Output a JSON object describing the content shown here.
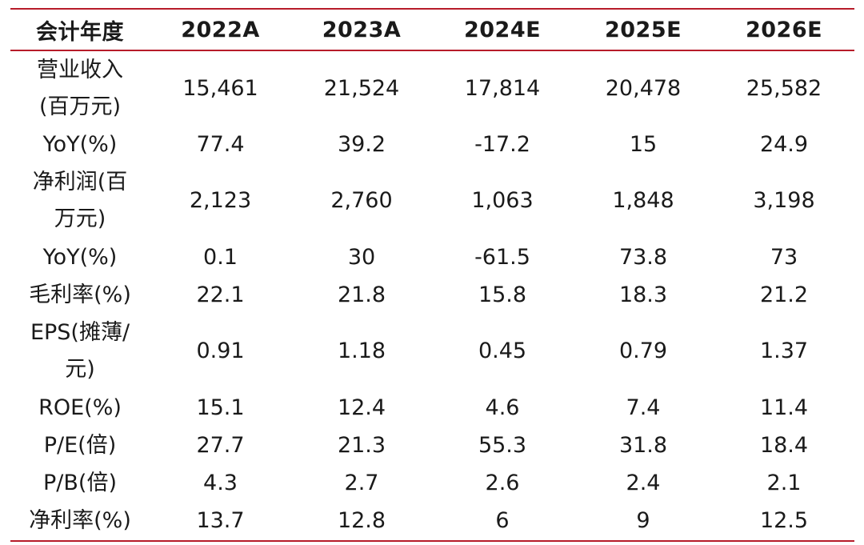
{
  "table": {
    "headers": [
      "会计年度",
      "2022A",
      "2023A",
      "2024E",
      "2025E",
      "2026E"
    ],
    "rows": [
      {
        "label": "营业收入(百万元)",
        "values": [
          "15,461",
          "21,524",
          "17,814",
          "20,478",
          "25,582"
        ]
      },
      {
        "label": "YoY(%)",
        "values": [
          "77.4",
          "39.2",
          "-17.2",
          "15",
          "24.9"
        ]
      },
      {
        "label": "净利润(百万元)",
        "values": [
          "2,123",
          "2,760",
          "1,063",
          "1,848",
          "3,198"
        ]
      },
      {
        "label": "YoY(%)",
        "values": [
          "0.1",
          "30",
          "-61.5",
          "73.8",
          "73"
        ]
      },
      {
        "label": "毛利率(%)",
        "values": [
          "22.1",
          "21.8",
          "15.8",
          "18.3",
          "21.2"
        ]
      },
      {
        "label": "EPS(摊薄/元)",
        "values": [
          "0.91",
          "1.18",
          "0.45",
          "0.79",
          "1.37"
        ]
      },
      {
        "label": "ROE(%)",
        "values": [
          "15.1",
          "12.4",
          "4.6",
          "7.4",
          "11.4"
        ]
      },
      {
        "label": "P/E(倍)",
        "values": [
          "27.7",
          "21.3",
          "55.3",
          "31.8",
          "18.4"
        ]
      },
      {
        "label": "P/B(倍)",
        "values": [
          "4.3",
          "2.7",
          "2.6",
          "2.4",
          "2.1"
        ]
      },
      {
        "label": "净利率(%)",
        "values": [
          "13.7",
          "12.8",
          "6",
          "9",
          "12.5"
        ]
      }
    ]
  },
  "colors": {
    "rule": "#b71c2a",
    "text": "#1a1a1a"
  }
}
